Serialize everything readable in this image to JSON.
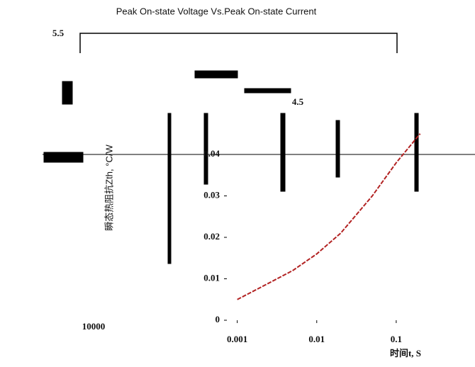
{
  "chart_data": {
    "type": "line",
    "title": "Peak On-state Voltage Vs.Peak On-state Current",
    "y_label": "瞬态热阻抗Zth, °C/W",
    "x_label": "时间t, S",
    "annotations": [
      "5.5",
      "4.5",
      "10000"
    ],
    "log_x": true,
    "x": [
      0.001,
      0.002,
      0.005,
      0.01,
      0.02,
      0.05,
      0.1,
      0.2
    ],
    "series": [
      {
        "name": "Zth",
        "color": "#b22222",
        "values": [
          0.005,
          0.008,
          0.012,
          0.016,
          0.021,
          0.03,
          0.038,
          0.045
        ]
      }
    ],
    "xlim": [
      0.00074,
      0.98
    ],
    "xticks": [
      0.001,
      0.01,
      0.1
    ],
    "ylim": [
      0,
      0.05
    ],
    "yticks": [
      0,
      0.01,
      0.02,
      0.03,
      0.04
    ]
  }
}
